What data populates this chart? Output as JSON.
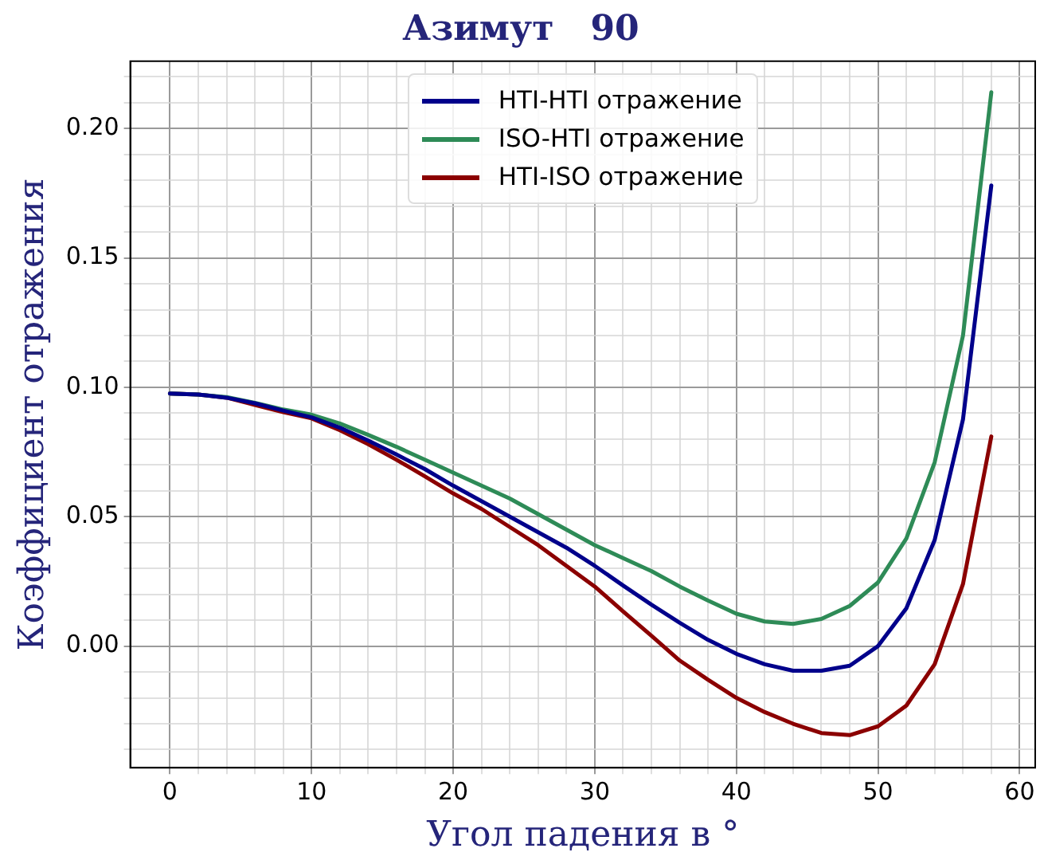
{
  "chart_data": {
    "type": "line",
    "title": "Азимут   90",
    "xlabel": "Угол падения в °",
    "ylabel": "Коэффициент отражения",
    "x": [
      0,
      2,
      4,
      6,
      8,
      10,
      12,
      14,
      16,
      18,
      20,
      22,
      24,
      26,
      28,
      30,
      32,
      34,
      36,
      38,
      40,
      42,
      44,
      46,
      48,
      50,
      52,
      54,
      56,
      58
    ],
    "series": [
      {
        "name": "HTI-HTI отражение",
        "color": "#00008b",
        "values": [
          0.0976,
          0.0972,
          0.096,
          0.0938,
          0.091,
          0.0884,
          0.0844,
          0.0794,
          0.074,
          0.0684,
          0.062,
          0.056,
          0.05,
          0.044,
          0.038,
          0.031,
          0.0234,
          0.016,
          0.009,
          0.0024,
          -0.003,
          -0.007,
          -0.0095,
          -0.0095,
          -0.0076,
          0.0,
          0.0146,
          0.041,
          0.0876,
          0.178
        ]
      },
      {
        "name": "ISO-HTI отражение",
        "color": "#2e8b57",
        "values": [
          0.0976,
          0.0972,
          0.0962,
          0.094,
          0.0914,
          0.0894,
          0.086,
          0.0816,
          0.077,
          0.072,
          0.067,
          0.062,
          0.057,
          0.051,
          0.045,
          0.039,
          0.034,
          0.029,
          0.023,
          0.0176,
          0.0125,
          0.0095,
          0.0086,
          0.0105,
          0.0155,
          0.0246,
          0.0416,
          0.071,
          0.12,
          0.214
        ]
      },
      {
        "name": "HTI-ISO отражение",
        "color": "#8b0000",
        "values": [
          0.0976,
          0.0972,
          0.096,
          0.0932,
          0.0904,
          0.088,
          0.0834,
          0.078,
          0.072,
          0.0656,
          0.059,
          0.053,
          0.046,
          0.039,
          0.031,
          0.023,
          0.0134,
          0.004,
          -0.0056,
          -0.013,
          -0.02,
          -0.0255,
          -0.03,
          -0.0336,
          -0.0344,
          -0.031,
          -0.023,
          -0.007,
          0.024,
          0.081
        ]
      }
    ],
    "xlim": [
      -2.8,
      61.1
    ],
    "ylim": [
      -0.047,
      0.226
    ],
    "xticks": [
      0,
      {
        "value": 2,
        "label": null
      },
      {
        "value": 4,
        "label": null
      },
      {
        "value": 6,
        "label": null
      },
      {
        "value": 8,
        "label": null
      },
      10,
      {
        "value": 12,
        "label": null
      },
      {
        "value": 14,
        "label": null
      },
      {
        "value": 16,
        "label": null
      },
      {
        "value": 18,
        "label": null
      },
      20,
      {
        "value": 22,
        "label": null
      },
      {
        "value": 24,
        "label": null
      },
      {
        "value": 26,
        "label": null
      },
      {
        "value": 28,
        "label": null
      },
      30,
      {
        "value": 32,
        "label": null
      },
      {
        "value": 34,
        "label": null
      },
      {
        "value": 36,
        "label": null
      },
      {
        "value": 38,
        "label": null
      },
      40,
      {
        "value": 42,
        "label": null
      },
      {
        "value": 44,
        "label": null
      },
      {
        "value": 46,
        "label": null
      },
      {
        "value": 48,
        "label": null
      },
      50,
      {
        "value": 52,
        "label": null
      },
      {
        "value": 54,
        "label": null
      },
      {
        "value": 56,
        "label": null
      },
      {
        "value": 58,
        "label": null
      },
      60
    ],
    "yticks": [
      {
        "value": -0.04,
        "label": null
      },
      {
        "value": -0.03,
        "label": null
      },
      {
        "value": -0.02,
        "label": null
      },
      {
        "value": -0.01,
        "label": null
      },
      {
        "value": 0,
        "label": "0.00"
      },
      {
        "value": 0.01,
        "label": null
      },
      {
        "value": 0.02,
        "label": null
      },
      {
        "value": 0.03,
        "label": null
      },
      {
        "value": 0.04,
        "label": null
      },
      {
        "value": 0.05,
        "label": "0.05"
      },
      {
        "value": 0.06,
        "label": null
      },
      {
        "value": 0.07,
        "label": null
      },
      {
        "value": 0.08,
        "label": null
      },
      {
        "value": 0.09,
        "label": null
      },
      {
        "value": 0.1,
        "label": "0.10"
      },
      {
        "value": 0.11,
        "label": null
      },
      {
        "value": 0.12,
        "label": null
      },
      {
        "value": 0.13,
        "label": null
      },
      {
        "value": 0.14,
        "label": null
      },
      {
        "value": 0.15,
        "label": "0.15"
      },
      {
        "value": 0.16,
        "label": null
      },
      {
        "value": 0.17,
        "label": null
      },
      {
        "value": 0.18,
        "label": null
      },
      {
        "value": 0.19,
        "label": null
      },
      {
        "value": 0.2,
        "label": "0.20"
      },
      {
        "value": 0.21,
        "label": null
      },
      {
        "value": 0.22,
        "label": null
      }
    ],
    "grid": true,
    "legend": "top",
    "marker": "none",
    "line_style": "solid"
  }
}
